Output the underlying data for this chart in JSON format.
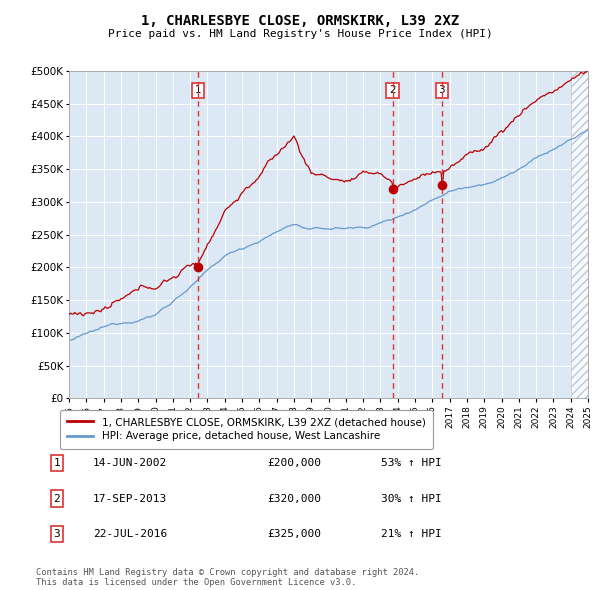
{
  "title": "1, CHARLESBYE CLOSE, ORMSKIRK, L39 2XZ",
  "subtitle": "Price paid vs. HM Land Registry's House Price Index (HPI)",
  "red_label": "1, CHARLESBYE CLOSE, ORMSKIRK, L39 2XZ (detached house)",
  "blue_label": "HPI: Average price, detached house, West Lancashire",
  "sale_points": [
    {
      "num": 1,
      "date_year": 2002.45,
      "price": 200000,
      "date_str": "14-JUN-2002",
      "pct": "53% ↑ HPI"
    },
    {
      "num": 2,
      "date_year": 2013.71,
      "price": 320000,
      "date_str": "17-SEP-2013",
      "pct": "30% ↑ HPI"
    },
    {
      "num": 3,
      "date_year": 2016.55,
      "price": 325000,
      "date_str": "22-JUL-2016",
      "pct": "21% ↑ HPI"
    }
  ],
  "vline_color": "#dd3333",
  "red_line_color": "#bb0000",
  "blue_line_color": "#6699cc",
  "bg_color": "#dce9f5",
  "hatch_color": "#c8d8e8",
  "ylim": [
    0,
    500000
  ],
  "xlim_start": 1995,
  "xlim_end": 2025,
  "footer": "Contains HM Land Registry data © Crown copyright and database right 2024.\nThis data is licensed under the Open Government Licence v3.0.",
  "yticks": [
    0,
    50000,
    100000,
    150000,
    200000,
    250000,
    300000,
    350000,
    400000,
    450000,
    500000
  ]
}
